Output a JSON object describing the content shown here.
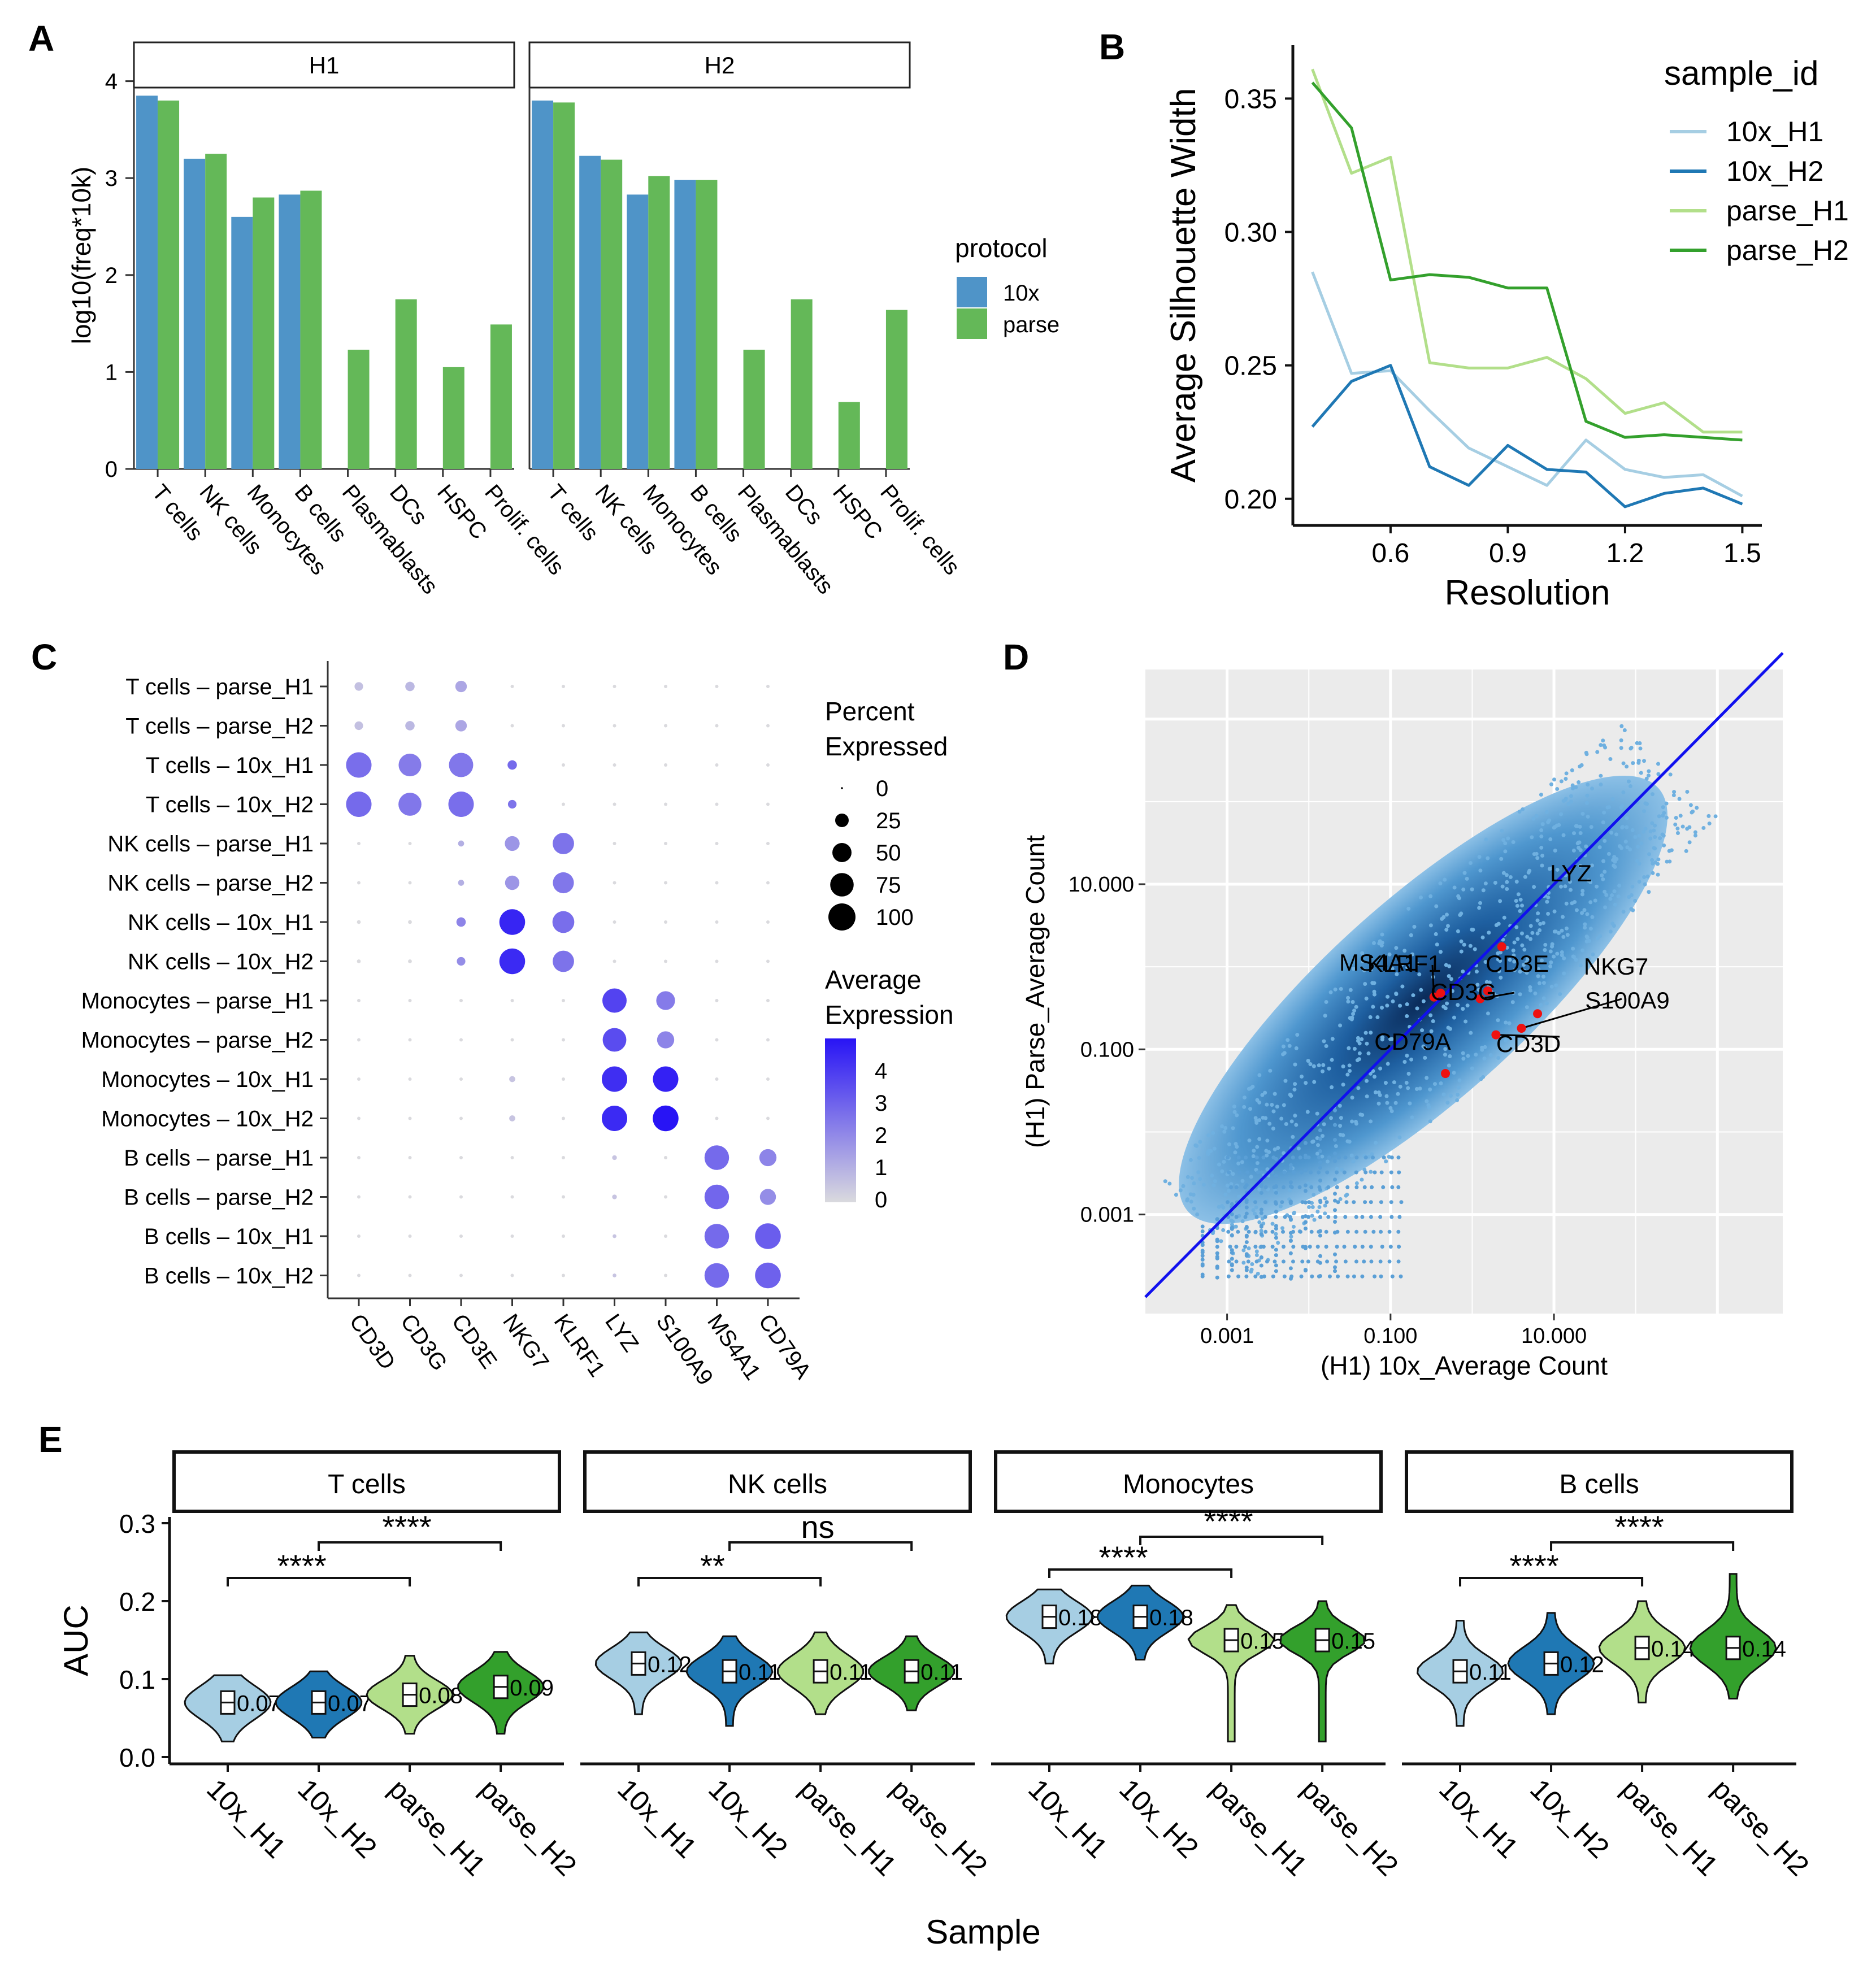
{
  "panel_letters": [
    "A",
    "B",
    "C",
    "D",
    "E"
  ],
  "chart_data": [
    {
      "panel": "A",
      "type": "bar",
      "facets": [
        "H1",
        "H2"
      ],
      "categories": [
        "T cells",
        "NK cells",
        "Monocytes",
        "B cells",
        "Plasmablasts",
        "DCs",
        "HSPC",
        "Prolif. cells"
      ],
      "series": [
        {
          "name": "10x",
          "color": "#4f94c8",
          "H1": [
            3.85,
            3.2,
            2.6,
            2.83,
            null,
            null,
            null,
            null
          ],
          "H2": [
            3.8,
            3.23,
            2.83,
            2.98,
            null,
            null,
            null,
            null
          ]
        },
        {
          "name": "parse",
          "color": "#64b858",
          "H1": [
            3.8,
            3.25,
            2.8,
            2.87,
            1.23,
            1.75,
            1.05,
            1.49
          ],
          "H2": [
            3.78,
            3.19,
            3.02,
            2.98,
            1.23,
            1.75,
            0.69,
            1.64
          ]
        }
      ],
      "ylabel": "log10(freq*10k)",
      "ylim": [
        0,
        4.4
      ],
      "yticks": [
        0,
        1,
        2,
        3,
        4
      ],
      "legend_title": "protocol",
      "legend": [
        "10x",
        "parse"
      ]
    },
    {
      "panel": "B",
      "type": "line",
      "x": [
        0.4,
        0.5,
        0.6,
        0.7,
        0.8,
        0.9,
        1.0,
        1.1,
        1.2,
        1.3,
        1.4,
        1.5
      ],
      "series": [
        {
          "name": "10x_H1",
          "color": "#a6cee3",
          "values": [
            0.285,
            0.247,
            0.248,
            0.233,
            0.219,
            0.212,
            0.205,
            0.222,
            0.211,
            0.208,
            0.209,
            0.201
          ]
        },
        {
          "name": "10x_H2",
          "color": "#1f78b4",
          "values": [
            0.227,
            0.244,
            0.25,
            0.212,
            0.205,
            0.22,
            0.211,
            0.21,
            0.197,
            0.202,
            0.204,
            0.198
          ]
        },
        {
          "name": "parse_H1",
          "color": "#b2df8a",
          "values": [
            0.361,
            0.322,
            0.328,
            0.251,
            0.249,
            0.249,
            0.253,
            0.245,
            0.232,
            0.236,
            0.225,
            0.225
          ]
        },
        {
          "name": "parse_H2",
          "color": "#33a02c",
          "values": [
            0.356,
            0.339,
            0.282,
            0.284,
            0.283,
            0.279,
            0.279,
            0.229,
            0.223,
            0.224,
            0.223,
            0.222
          ]
        }
      ],
      "xlabel": "Resolution",
      "ylabel": "Average Silhouette Width",
      "xticks": [
        0.6,
        0.9,
        1.2,
        1.5
      ],
      "yticks": [
        0.2,
        0.25,
        0.3,
        0.35
      ],
      "xlim": [
        0.35,
        1.55
      ],
      "ylim": [
        0.19,
        0.37
      ],
      "legend_title": "sample_id"
    },
    {
      "panel": "C",
      "type": "dot",
      "rows": [
        "T cells - parse_H1",
        "T cells - parse_H2",
        "T cells - 10x_H1",
        "T cells - 10x_H2",
        "NK cells - parse_H1",
        "NK cells - parse_H2",
        "NK cells - 10x_H1",
        "NK cells - 10x_H2",
        "Monocytes - parse_H1",
        "Monocytes - parse_H2",
        "Monocytes - 10x_H1",
        "Monocytes - 10x_H2",
        "B cells - parse_H1",
        "B cells - parse_H2",
        "B cells - 10x_H1",
        "B cells - 10x_H2"
      ],
      "genes": [
        "CD3D",
        "CD3G",
        "CD3E",
        "NKG7",
        "KLRF1",
        "LYZ",
        "S100A9",
        "MS4A1",
        "CD79A"
      ],
      "percent_expressed": [
        [
          10,
          12,
          18,
          1,
          1,
          1,
          1,
          1,
          1
        ],
        [
          10,
          12,
          18,
          1,
          1,
          1,
          1,
          1,
          1
        ],
        [
          88,
          70,
          80,
          12,
          1,
          1,
          1,
          1,
          1
        ],
        [
          88,
          72,
          88,
          10,
          1,
          1,
          1,
          1,
          1
        ],
        [
          1,
          1,
          5,
          30,
          62,
          1,
          1,
          1,
          1
        ],
        [
          1,
          1,
          5,
          28,
          60,
          1,
          1,
          1,
          1
        ],
        [
          2,
          2,
          12,
          90,
          65,
          1,
          1,
          1,
          1
        ],
        [
          2,
          2,
          10,
          90,
          62,
          1,
          1,
          1,
          1
        ],
        [
          1,
          1,
          1,
          1,
          1,
          80,
          48,
          1,
          1
        ],
        [
          1,
          1,
          1,
          1,
          1,
          76,
          40,
          1,
          1
        ],
        [
          1,
          1,
          1,
          5,
          1,
          88,
          88,
          1,
          1
        ],
        [
          1,
          1,
          1,
          5,
          1,
          88,
          90,
          1,
          1
        ],
        [
          1,
          1,
          1,
          1,
          1,
          3,
          1,
          82,
          40
        ],
        [
          1,
          1,
          1,
          1,
          1,
          3,
          1,
          82,
          35
        ],
        [
          1,
          1,
          1,
          1,
          1,
          2,
          1,
          82,
          90
        ],
        [
          1,
          1,
          1,
          1,
          1,
          2,
          1,
          82,
          90
        ]
      ],
      "average_expression": [
        [
          0.6,
          0.8,
          1.2,
          0,
          0,
          0,
          0,
          0,
          0
        ],
        [
          0.6,
          0.8,
          1.2,
          0,
          0,
          0,
          0,
          0,
          0
        ],
        [
          2.5,
          2.2,
          2.3,
          2.6,
          0,
          0,
          0,
          0,
          0
        ],
        [
          2.6,
          2.3,
          2.5,
          2.4,
          0,
          0,
          0,
          0,
          0
        ],
        [
          0,
          0,
          1.0,
          1.6,
          2.4,
          0,
          0,
          0,
          0
        ],
        [
          0,
          0,
          1.0,
          1.6,
          2.3,
          0,
          0,
          0,
          0
        ],
        [
          0,
          0,
          2.0,
          4.2,
          2.5,
          0,
          0,
          0,
          0
        ],
        [
          0,
          0,
          1.8,
          4.1,
          2.4,
          0,
          0,
          0,
          0
        ],
        [
          0,
          0,
          0,
          0,
          0,
          3.5,
          2.2,
          0,
          0
        ],
        [
          0,
          0,
          0,
          0,
          0,
          3.3,
          2.0,
          0,
          0
        ],
        [
          0,
          0,
          0,
          0.5,
          0,
          4.0,
          4.3,
          0,
          0
        ],
        [
          0,
          0,
          0,
          0.5,
          0,
          4.1,
          4.6,
          0,
          0
        ],
        [
          0,
          0,
          0,
          0,
          0,
          0.5,
          0,
          2.6,
          2.0
        ],
        [
          0,
          0,
          0,
          0,
          0,
          0.5,
          0,
          2.7,
          1.8
        ],
        [
          0,
          0,
          0,
          0,
          0,
          0.5,
          0,
          2.6,
          2.9
        ],
        [
          0,
          0,
          0,
          0,
          0,
          0.5,
          0,
          2.6,
          2.8
        ]
      ],
      "size_legend_title": [
        "Percent",
        "Expressed"
      ],
      "size_legend": [
        0,
        25,
        50,
        75,
        100
      ],
      "color_legend_title": [
        "Average",
        "Expression"
      ],
      "color_legend": [
        4,
        3,
        2,
        1,
        0
      ]
    },
    {
      "panel": "D",
      "type": "scatter",
      "xlabel": "(H1) 10x_Average Count",
      "ylabel": "(H1) Parse_Average Count",
      "xticks": [
        "0.001",
        "0.100",
        "10.000"
      ],
      "yticks": [
        "10.000",
        "0.100",
        "0.001"
      ],
      "xlim_log10": [
        -4,
        3.8
      ],
      "ylim_log10": [
        -4.2,
        3.6
      ],
      "highlighted_genes": [
        {
          "gene": "LYZ",
          "x": 2.3,
          "y": 1.75
        },
        {
          "gene": "KLRF1",
          "x": 0.41,
          "y": 0.48
        },
        {
          "gene": "MS4A1",
          "x": 0.34,
          "y": 0.43
        },
        {
          "gene": "CD3E",
          "x": 1.55,
          "y": 0.51
        },
        {
          "gene": "CD3G",
          "x": 1.25,
          "y": 0.41
        },
        {
          "gene": "NKG7",
          "x": 6.3,
          "y": 0.27
        },
        {
          "gene": "S100A9",
          "x": 4.0,
          "y": 0.18
        },
        {
          "gene": "CD3D",
          "x": 1.95,
          "y": 0.15
        },
        {
          "gene": "CD79A",
          "x": 0.47,
          "y": 0.051
        }
      ]
    },
    {
      "panel": "E",
      "type": "violin",
      "facets": [
        "T cells",
        "NK cells",
        "Monocytes",
        "B cells"
      ],
      "groups": [
        "10x_H1",
        "10x_H2",
        "parse_H1",
        "parse_H2"
      ],
      "group_colors": [
        "#a6cee3",
        "#1f78b4",
        "#b2df8a",
        "#33a02c"
      ],
      "medians": [
        [
          "0.07",
          "0.07",
          "0.08",
          "0.09"
        ],
        [
          "0.12",
          "0.11",
          "0.11",
          "0.11"
        ],
        [
          "0.18",
          "0.18",
          "0.15",
          "0.15"
        ],
        [
          "0.11",
          "0.12",
          "0.14",
          "0.14"
        ]
      ],
      "significance": [
        [
          "****",
          "****"
        ],
        [
          "**",
          "ns"
        ],
        [
          "****",
          "****"
        ],
        [
          "****",
          "****"
        ]
      ],
      "ylabel": "AUC",
      "xlabel": "Sample",
      "yticks": [
        "0.0",
        "0.1",
        "0.2",
        "0.3"
      ],
      "ylim": [
        -0.005,
        0.31
      ]
    }
  ]
}
